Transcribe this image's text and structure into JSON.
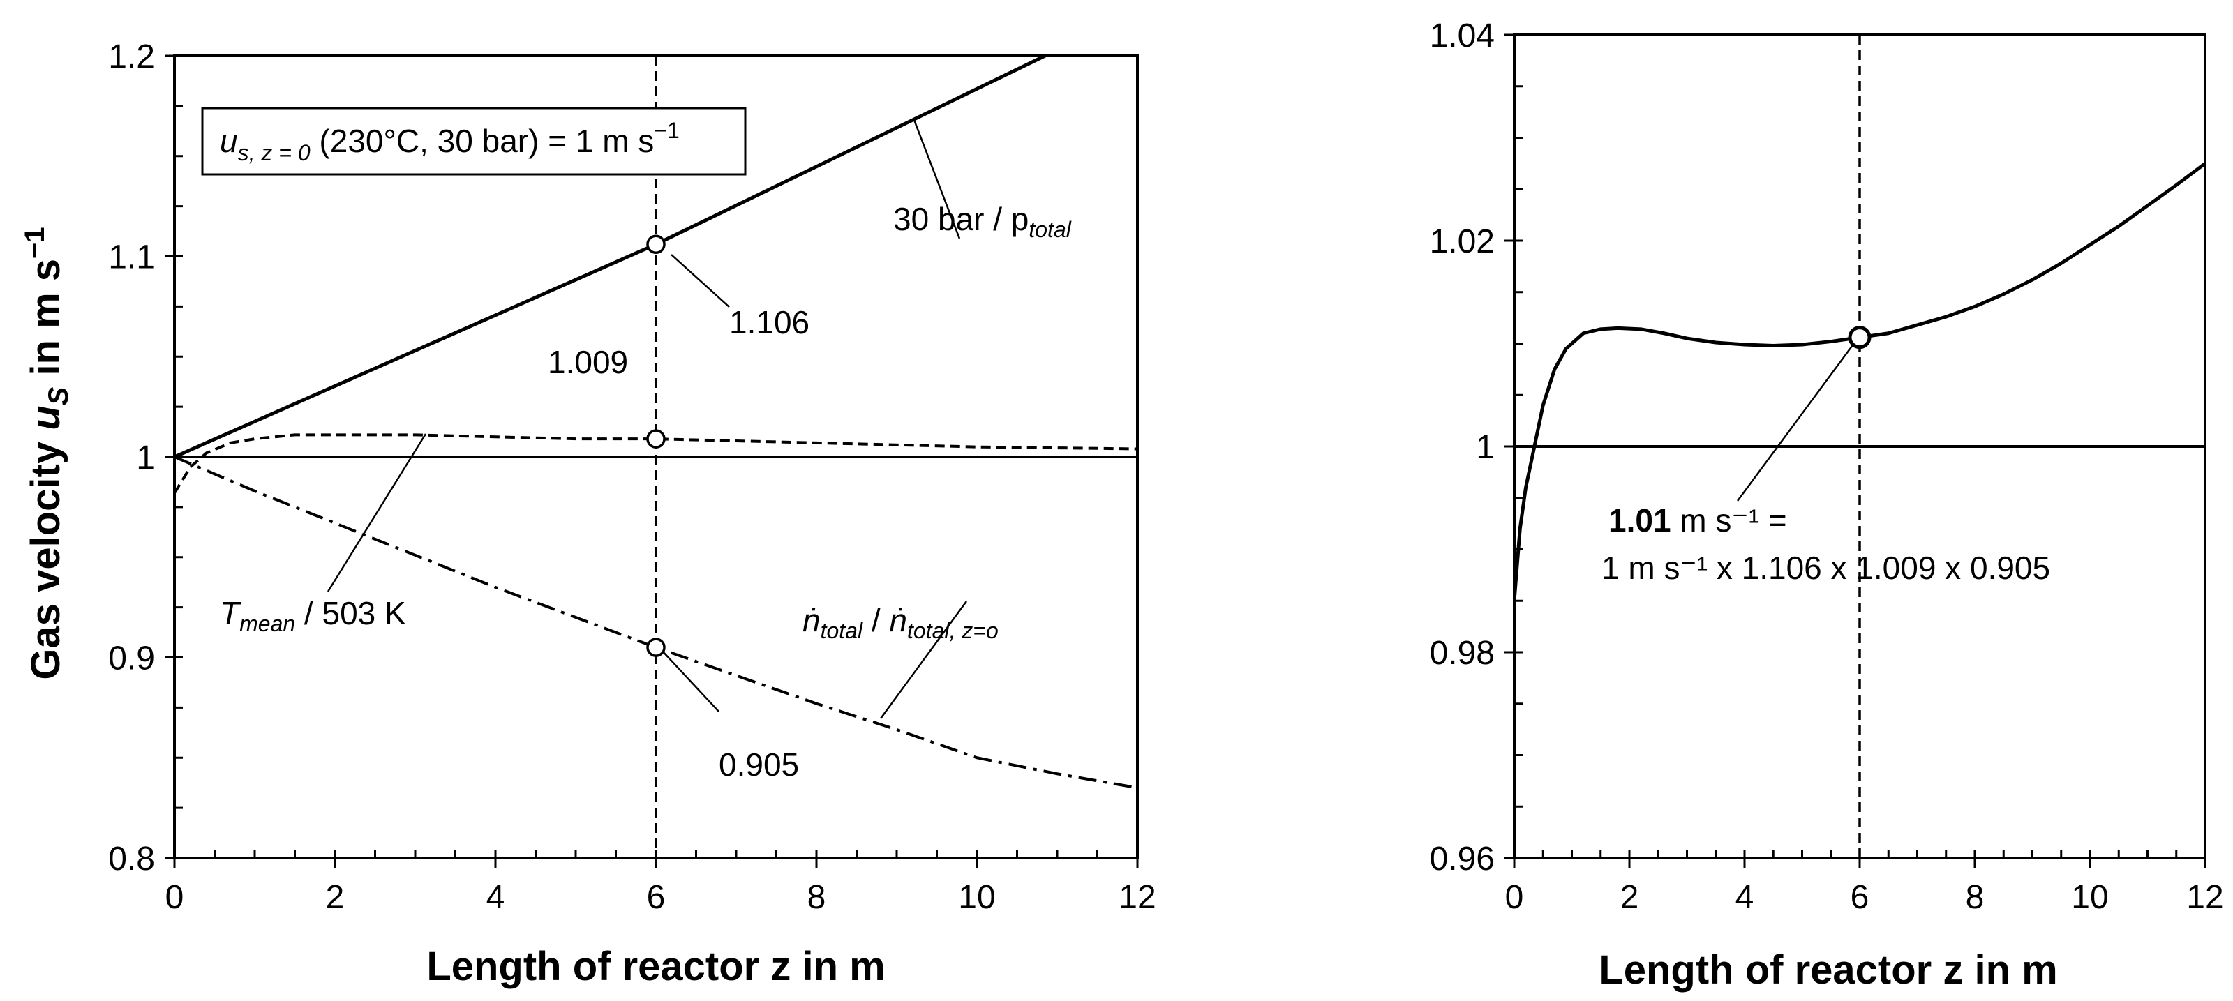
{
  "chart_data": [
    {
      "type": "line",
      "xlabel": "Length of reactor z in m",
      "ylabel": "Gas velocity u_S in m s⁻¹",
      "xlim": [
        0,
        12
      ],
      "ylim": [
        0.8,
        1.2
      ],
      "xticks": [
        "0",
        "2",
        "4",
        "6",
        "8",
        "10",
        "12"
      ],
      "yticks": [
        "0.8",
        "0.9",
        "1",
        "1.1",
        "1.2"
      ],
      "grid": false,
      "series": [
        {
          "name": "30 bar / p_total",
          "style": "solid",
          "x": [
            0,
            6,
            10.85
          ],
          "y": [
            1.0,
            1.106,
            1.2
          ]
        },
        {
          "name": "T_mean / 503 K",
          "style": "dashed",
          "x": [
            0,
            0.2,
            0.4,
            0.7,
            1.0,
            1.5,
            2.0,
            3.0,
            4.0,
            5.0,
            6.0,
            8.0,
            10.0,
            12.0
          ],
          "y": [
            0.982,
            0.995,
            1.002,
            1.007,
            1.009,
            1.011,
            1.011,
            1.011,
            1.01,
            1.009,
            1.009,
            1.007,
            1.005,
            1.004
          ]
        },
        {
          "name": "ṅ_total / ṅ_total,z=o",
          "style": "dash-dot",
          "x": [
            0,
            1,
            2,
            3,
            4,
            5,
            6,
            7,
            8,
            9,
            10,
            11,
            12
          ],
          "y": [
            1.0,
            0.983,
            0.967,
            0.951,
            0.935,
            0.92,
            0.905,
            0.891,
            0.877,
            0.864,
            0.85,
            0.842,
            0.835
          ]
        }
      ],
      "reference_lines": {
        "horizontal_y": 1.0,
        "vertical_x": 6
      },
      "points": [
        {
          "x": 6,
          "y": 1.106,
          "label": "1.106"
        },
        {
          "x": 6,
          "y": 1.009,
          "label": "1.009"
        },
        {
          "x": 6,
          "y": 0.905,
          "label": "0.905"
        }
      ],
      "box_annotation": {
        "u_s": "u",
        "sub": "s, z = 0",
        "rest": " (230°C, 30 bar) = 1 m s",
        "sup": "−1"
      },
      "curve_labels": {
        "pressure": {
          "main": "30 bar / p",
          "sub": "total"
        },
        "temperature": {
          "main": "T",
          "sub": "mean",
          "rest": " / 503 K"
        },
        "molar": {
          "n1": "ṅ",
          "sub1": "total",
          "slash": " / ",
          "n2": "ṅ",
          "sub2": "total, z=o"
        }
      }
    },
    {
      "type": "line",
      "xlabel": "Length of reactor z in m",
      "ylabel": "",
      "xlim": [
        0,
        12
      ],
      "ylim": [
        0.96,
        1.04
      ],
      "xticks": [
        "0",
        "2",
        "4",
        "6",
        "8",
        "10",
        "12"
      ],
      "yticks": [
        "0.96",
        "0.98",
        "1",
        "1.02",
        "1.04"
      ],
      "grid": false,
      "series": [
        {
          "name": "u_S",
          "style": "solid",
          "x": [
            0,
            0.1,
            0.2,
            0.35,
            0.5,
            0.7,
            0.9,
            1.2,
            1.5,
            1.8,
            2.2,
            2.6,
            3.0,
            3.5,
            4.0,
            4.5,
            5.0,
            5.5,
            6.0,
            6.5,
            7.0,
            7.5,
            8.0,
            8.5,
            9.0,
            9.5,
            10.0,
            10.5,
            11.0,
            11.5,
            12.0
          ],
          "y": [
            0.985,
            0.992,
            0.996,
            1.0,
            1.004,
            1.0075,
            1.0095,
            1.011,
            1.0114,
            1.0115,
            1.0114,
            1.011,
            1.0105,
            1.0101,
            1.0099,
            1.0098,
            1.0099,
            1.0102,
            1.0106,
            1.011,
            1.0118,
            1.0126,
            1.0136,
            1.0148,
            1.0162,
            1.0178,
            1.0196,
            1.0214,
            1.0234,
            1.0254,
            1.0275
          ]
        }
      ],
      "reference_lines": {
        "horizontal_y": 1.0,
        "vertical_x": 6
      },
      "points": [
        {
          "x": 6,
          "y": 1.0106
        }
      ],
      "annotation": {
        "bold": "1.01",
        "line1_rest": " m s⁻¹ =",
        "line2": "1 m s⁻¹ x 1.106 x 1.009 x 0.905"
      }
    }
  ]
}
